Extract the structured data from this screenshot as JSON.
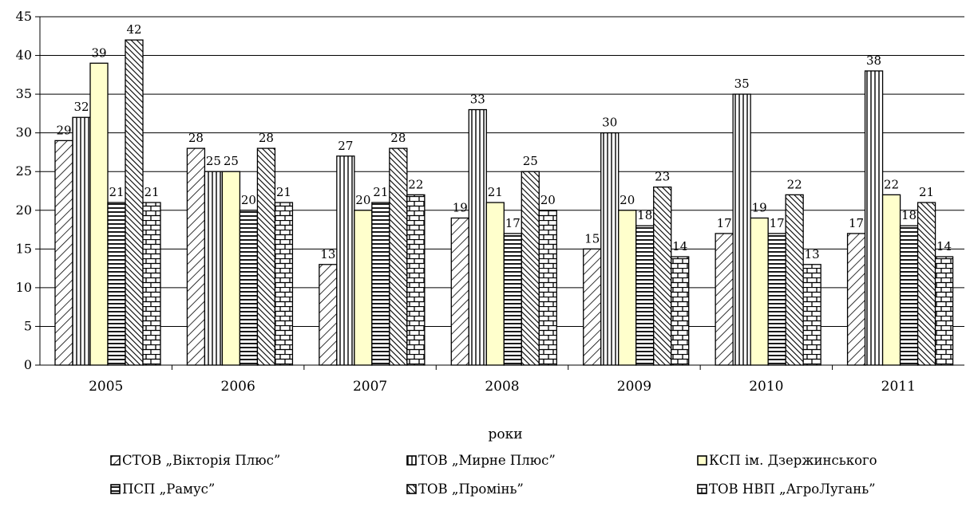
{
  "chart_data": {
    "type": "bar",
    "title": "",
    "xlabel": "роки",
    "ylabel": "",
    "ylim": [
      0,
      45
    ],
    "yticks": [
      "0",
      "5",
      "10",
      "15",
      "20",
      "25",
      "30",
      "35",
      "40",
      "45"
    ],
    "grid": true,
    "legend_position": "bottom",
    "categories": [
      "2005",
      "2006",
      "2007",
      "2008",
      "2009",
      "2010",
      "2011"
    ],
    "series": [
      {
        "name": "СТОВ „Вікторія Плюс”",
        "pattern": "diagonal-lines",
        "color": "#ffffff",
        "values": [
          29,
          28,
          13,
          19,
          15,
          17,
          17
        ]
      },
      {
        "name": "ТОВ „Мирне Плюс”",
        "pattern": "vertical-lines",
        "color": "#ffffff",
        "values": [
          32,
          25,
          27,
          33,
          30,
          35,
          38
        ]
      },
      {
        "name": "КСП ім. Дзержинського",
        "pattern": "solid",
        "color": "#ffffcc",
        "values": [
          39,
          25,
          20,
          21,
          20,
          19,
          22
        ]
      },
      {
        "name": "ПСП „Рамус”",
        "pattern": "horizontal-lines",
        "color": "#ffffff",
        "values": [
          21,
          20,
          21,
          17,
          18,
          17,
          18
        ]
      },
      {
        "name": "ТОВ „Промінь”",
        "pattern": "dense-diagonal",
        "color": "#ffffff",
        "values": [
          42,
          28,
          28,
          25,
          23,
          22,
          21
        ]
      },
      {
        "name": "ТОВ НВП „АгроЛугань”",
        "pattern": "brick",
        "color": "#ffffff",
        "values": [
          21,
          21,
          22,
          20,
          14,
          13,
          14
        ]
      }
    ]
  }
}
